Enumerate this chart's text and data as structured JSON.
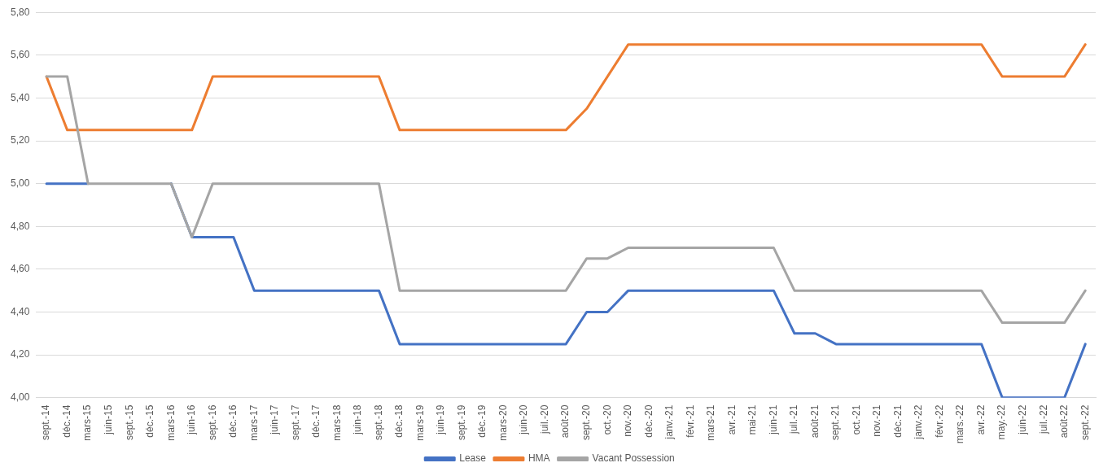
{
  "chart_data": {
    "type": "line",
    "categories": [
      "sept.-14",
      "déc.-14",
      "mars-15",
      "juin-15",
      "sept.-15",
      "déc.-15",
      "mars-16",
      "juin-16",
      "sept.-16",
      "déc.-16",
      "mars-17",
      "juin-17",
      "sept.-17",
      "déc.-17",
      "mars-18",
      "juin-18",
      "sept.-18",
      "déc.-18",
      "mars-19",
      "juin-19",
      "sept.-19",
      "déc.-19",
      "mars-20",
      "juin-20",
      "juil.-20",
      "août-20",
      "sept.-20",
      "oct.-20",
      "nov.-20",
      "déc.-20",
      "janv.-21",
      "févr.-21",
      "mars-21",
      "avr.-21",
      "mai-21",
      "juin-21",
      "juil.-21",
      "août-21",
      "sept.-21",
      "oct.-21",
      "nov.-21",
      "déc.-21",
      "janv.-22",
      "févr.-22",
      "mars.-22",
      "avr.-22",
      "may.-22",
      "juin-22",
      "juil.-22",
      "août-22",
      "sept.-22"
    ],
    "series": [
      {
        "name": "Lease",
        "color": "#4472c4",
        "values": [
          5.0,
          5.0,
          5.0,
          null,
          null,
          null,
          5.0,
          4.75,
          4.75,
          4.75,
          4.5,
          4.5,
          4.5,
          4.5,
          4.5,
          4.5,
          4.5,
          4.25,
          4.25,
          4.25,
          4.25,
          4.25,
          4.25,
          4.25,
          4.25,
          4.25,
          4.4,
          4.4,
          4.5,
          4.5,
          4.5,
          4.5,
          4.5,
          4.5,
          4.5,
          4.5,
          4.3,
          4.3,
          4.25,
          4.25,
          4.25,
          4.25,
          4.25,
          4.25,
          4.25,
          4.25,
          4.0,
          4.0,
          4.0,
          4.0,
          4.25
        ]
      },
      {
        "name": "HMA",
        "color": "#ed7d31",
        "values": [
          5.5,
          5.25,
          5.25,
          5.25,
          5.25,
          5.25,
          5.25,
          5.25,
          5.5,
          5.5,
          5.5,
          5.5,
          5.5,
          5.5,
          5.5,
          5.5,
          5.5,
          5.25,
          5.25,
          5.25,
          5.25,
          5.25,
          5.25,
          5.25,
          5.25,
          5.25,
          5.35,
          5.5,
          5.65,
          5.65,
          5.65,
          5.65,
          5.65,
          5.65,
          5.65,
          5.65,
          5.65,
          5.65,
          5.65,
          5.65,
          5.65,
          5.65,
          5.65,
          5.65,
          5.65,
          5.65,
          5.5,
          5.5,
          5.5,
          5.5,
          5.65
        ]
      },
      {
        "name": "Vacant Possession",
        "color": "#a5a5a5",
        "values": [
          5.5,
          5.5,
          5.0,
          5.0,
          5.0,
          5.0,
          5.0,
          4.75,
          5.0,
          5.0,
          5.0,
          5.0,
          5.0,
          5.0,
          5.0,
          5.0,
          5.0,
          4.5,
          4.5,
          4.5,
          4.5,
          4.5,
          4.5,
          4.5,
          4.5,
          4.5,
          4.65,
          4.65,
          4.7,
          4.7,
          4.7,
          4.7,
          4.7,
          4.7,
          4.7,
          4.7,
          4.5,
          4.5,
          4.5,
          4.5,
          4.5,
          4.5,
          4.5,
          4.5,
          4.5,
          4.5,
          4.35,
          4.35,
          4.35,
          4.35,
          4.5
        ]
      }
    ],
    "ylim": [
      4.0,
      5.8
    ],
    "yticks": [
      {
        "value": 4.0,
        "label": "4,00"
      },
      {
        "value": 4.2,
        "label": "4,20"
      },
      {
        "value": 4.4,
        "label": "4,40"
      },
      {
        "value": 4.6,
        "label": "4,60"
      },
      {
        "value": 4.8,
        "label": "4,80"
      },
      {
        "value": 5.0,
        "label": "5,00"
      },
      {
        "value": 5.2,
        "label": "5,20"
      },
      {
        "value": 5.4,
        "label": "5,40"
      },
      {
        "value": 5.6,
        "label": "5,60"
      },
      {
        "value": 5.8,
        "label": "5,80"
      }
    ],
    "grid": "y",
    "legend": "bottom",
    "marker": "none",
    "line_style": "solid"
  }
}
